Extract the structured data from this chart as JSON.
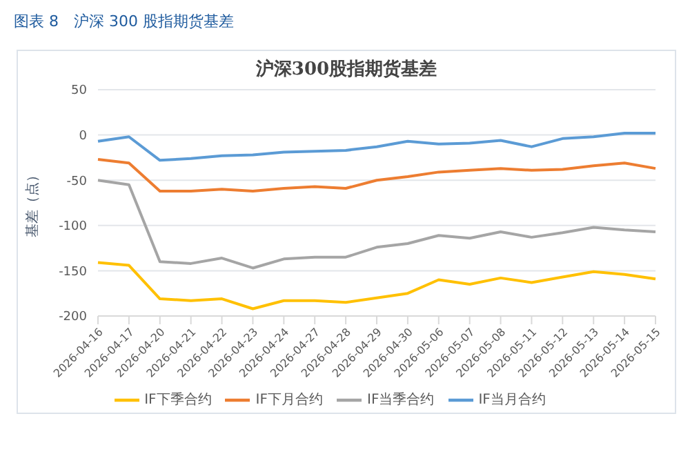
{
  "chart_data": {
    "type": "line",
    "title": "沪深300股指期货基差",
    "subtitle": "图表 8　沪深 300 股指期货基差",
    "ylabel": "基差（点）",
    "categories": [
      "2026-04-16",
      "2026-04-17",
      "2026-04-20",
      "2026-04-21",
      "2026-04-22",
      "2026-04-23",
      "2026-04-24",
      "2026-04-27",
      "2026-04-28",
      "2026-04-29",
      "2026-04-30",
      "2026-05-06",
      "2026-05-07",
      "2026-05-08",
      "2026-05-11",
      "2026-05-12",
      "2026-05-13",
      "2026-05-14",
      "2026-05-15"
    ],
    "series": [
      {
        "name": "IF当月合约",
        "color": "#5b9bd5",
        "values": [
          -7,
          -2,
          -28,
          -26,
          -23,
          -22,
          -19,
          -18,
          -17,
          -13,
          -7,
          -10,
          -9,
          -6,
          -13,
          -4,
          -2,
          2,
          2
        ]
      },
      {
        "name": "IF下月合约",
        "color": "#ed7d31",
        "values": [
          -27,
          -31,
          -62,
          -62,
          -60,
          -62,
          -59,
          -57,
          -59,
          -50,
          -46,
          -41,
          -39,
          -37,
          -39,
          -38,
          -34,
          -31,
          -37
        ]
      },
      {
        "name": "IF当季合约",
        "color": "#a5a5a5",
        "values": [
          -50,
          -55,
          -140,
          -142,
          -136,
          -147,
          -137,
          -135,
          -135,
          -124,
          -120,
          -111,
          -114,
          -107,
          -113,
          -108,
          -102,
          -105,
          -107
        ]
      },
      {
        "name": "IF下季合约",
        "color": "#ffc000",
        "values": [
          -141,
          -144,
          -181,
          -183,
          -181,
          -192,
          -183,
          -183,
          -185,
          -180,
          -175,
          -160,
          -165,
          -158,
          -163,
          -157,
          -151,
          -154,
          -159
        ]
      }
    ],
    "ylim": [
      -200,
      50
    ],
    "yticks": [
      50,
      0,
      -50,
      -100,
      -150,
      -200
    ],
    "grid": "y",
    "legend": "bottom",
    "marker": "none",
    "line_style": "solid"
  }
}
